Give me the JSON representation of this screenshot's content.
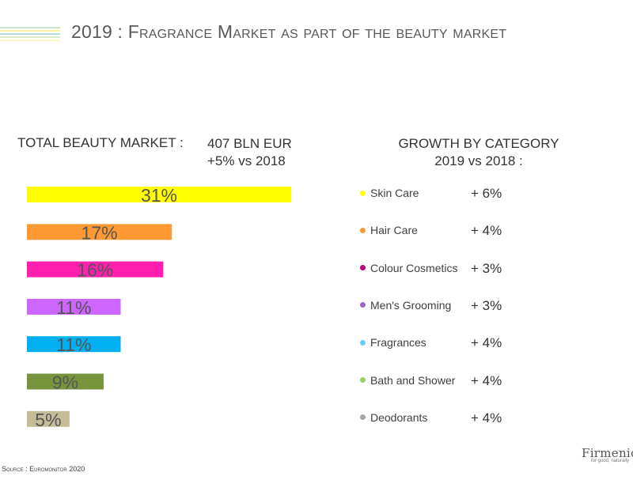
{
  "title": {
    "year_prefix": "2019 : F",
    "part1": "ragrance ",
    "m_letter": "M",
    "part2": "arket as part of the beauty market"
  },
  "total": {
    "label": "TOTAL BEAUTY MARKET :",
    "value_line1": "407 BLN EUR",
    "value_line2": "+5% vs 2018"
  },
  "growth": {
    "title_line1": "GROWTH BY CATEGORY",
    "title_line2": "2019 vs 2018 :"
  },
  "chart_data": {
    "type": "bar",
    "orientation": "horizontal",
    "categories": [
      "Skin Care",
      "Hair Care",
      "Colour Cosmetics",
      "Men's Grooming",
      "Fragrances",
      "Bath and Shower",
      "Deodorants"
    ],
    "values": [
      31,
      17,
      16,
      11,
      11,
      9,
      5
    ],
    "value_labels": [
      "31%",
      "17%",
      "16%",
      "11%",
      "11%",
      "9%",
      "5%"
    ],
    "colors": [
      "#ffff00",
      "#ff9933",
      "#ff1faf",
      "#cc66ff",
      "#00b0f0",
      "#77933c",
      "#c4bd97"
    ],
    "xlim": [
      0,
      31
    ],
    "growth_labels": [
      "+ 6%",
      "+ 4%",
      "+ 3%",
      "+ 3%",
      "+ 4%",
      "+ 4%",
      "+ 4%"
    ],
    "legend_dot_colors": [
      "#ffff00",
      "#ff9933",
      "#c00080",
      "#9966cc",
      "#66ccff",
      "#99cc66",
      "#a6a6a6"
    ]
  },
  "source": "Source : Euromonitor 2020",
  "logo": {
    "name": "Firmenich",
    "tagline": "for good, naturally"
  }
}
